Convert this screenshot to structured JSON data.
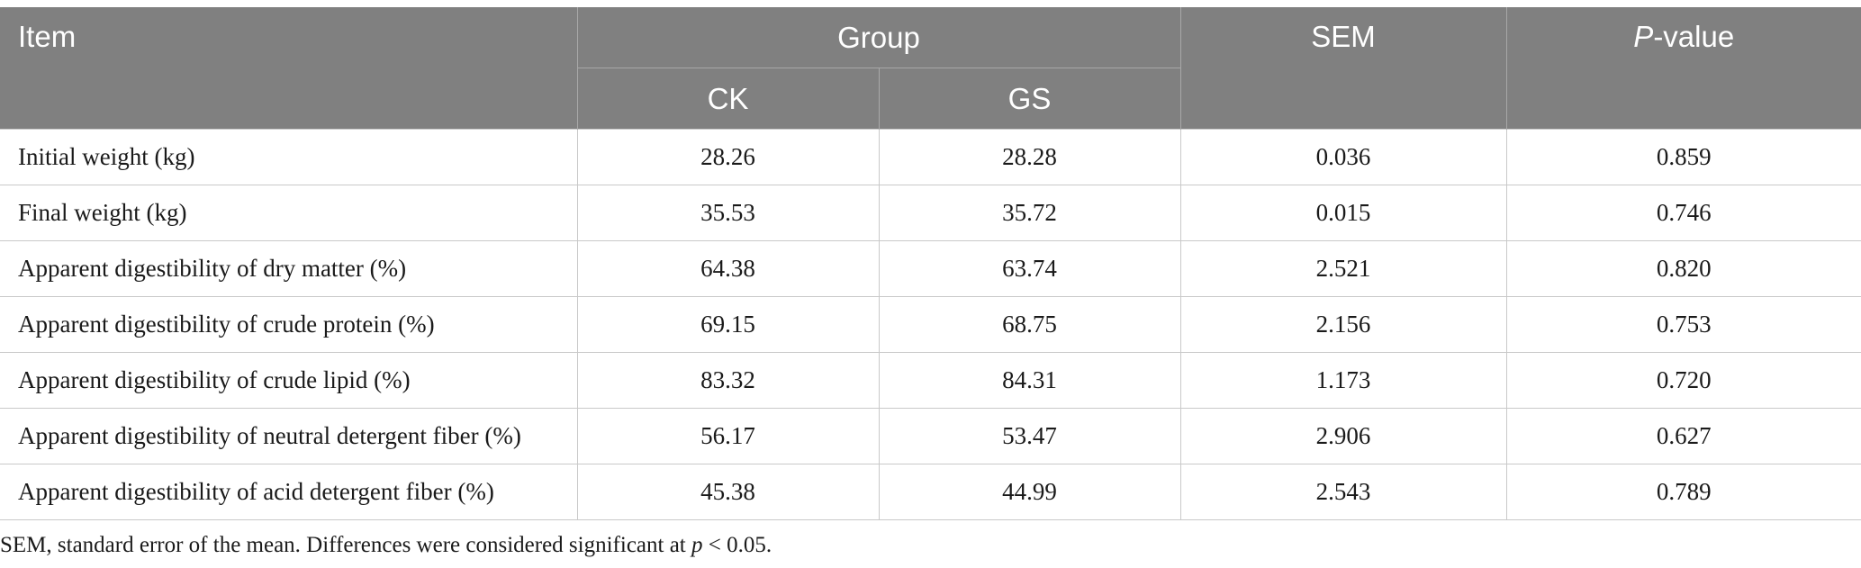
{
  "table": {
    "headers": {
      "item": "Item",
      "group": "Group",
      "ck": "CK",
      "gs": "GS",
      "sem": "SEM",
      "p_italic": "P",
      "p_rest": "-value"
    },
    "rows": [
      {
        "item": "Initial weight (kg)",
        "ck": "28.26",
        "gs": "28.28",
        "sem": "0.036",
        "p": "0.859"
      },
      {
        "item": "Final weight (kg)",
        "ck": "35.53",
        "gs": "35.72",
        "sem": "0.015",
        "p": "0.746"
      },
      {
        "item": "Apparent digestibility of dry matter (%)",
        "ck": "64.38",
        "gs": "63.74",
        "sem": "2.521",
        "p": "0.820"
      },
      {
        "item": "Apparent digestibility of crude protein (%)",
        "ck": "69.15",
        "gs": "68.75",
        "sem": "2.156",
        "p": "0.753"
      },
      {
        "item": "Apparent digestibility of crude lipid (%)",
        "ck": "83.32",
        "gs": "84.31",
        "sem": "1.173",
        "p": "0.720"
      },
      {
        "item": "Apparent digestibility of neutral detergent fiber (%)",
        "ck": "56.17",
        "gs": "53.47",
        "sem": "2.906",
        "p": "0.627"
      },
      {
        "item": "Apparent digestibility of acid detergent fiber (%)",
        "ck": "45.38",
        "gs": "44.99",
        "sem": "2.543",
        "p": "0.789"
      }
    ]
  },
  "footnote": {
    "before": "SEM, standard error of the mean. Differences were considered significant at ",
    "p_italic": "p",
    "after": " < 0.05."
  },
  "colors": {
    "header_bg": "#808080",
    "header_text": "#ffffff",
    "border": "#c9c9c9"
  }
}
